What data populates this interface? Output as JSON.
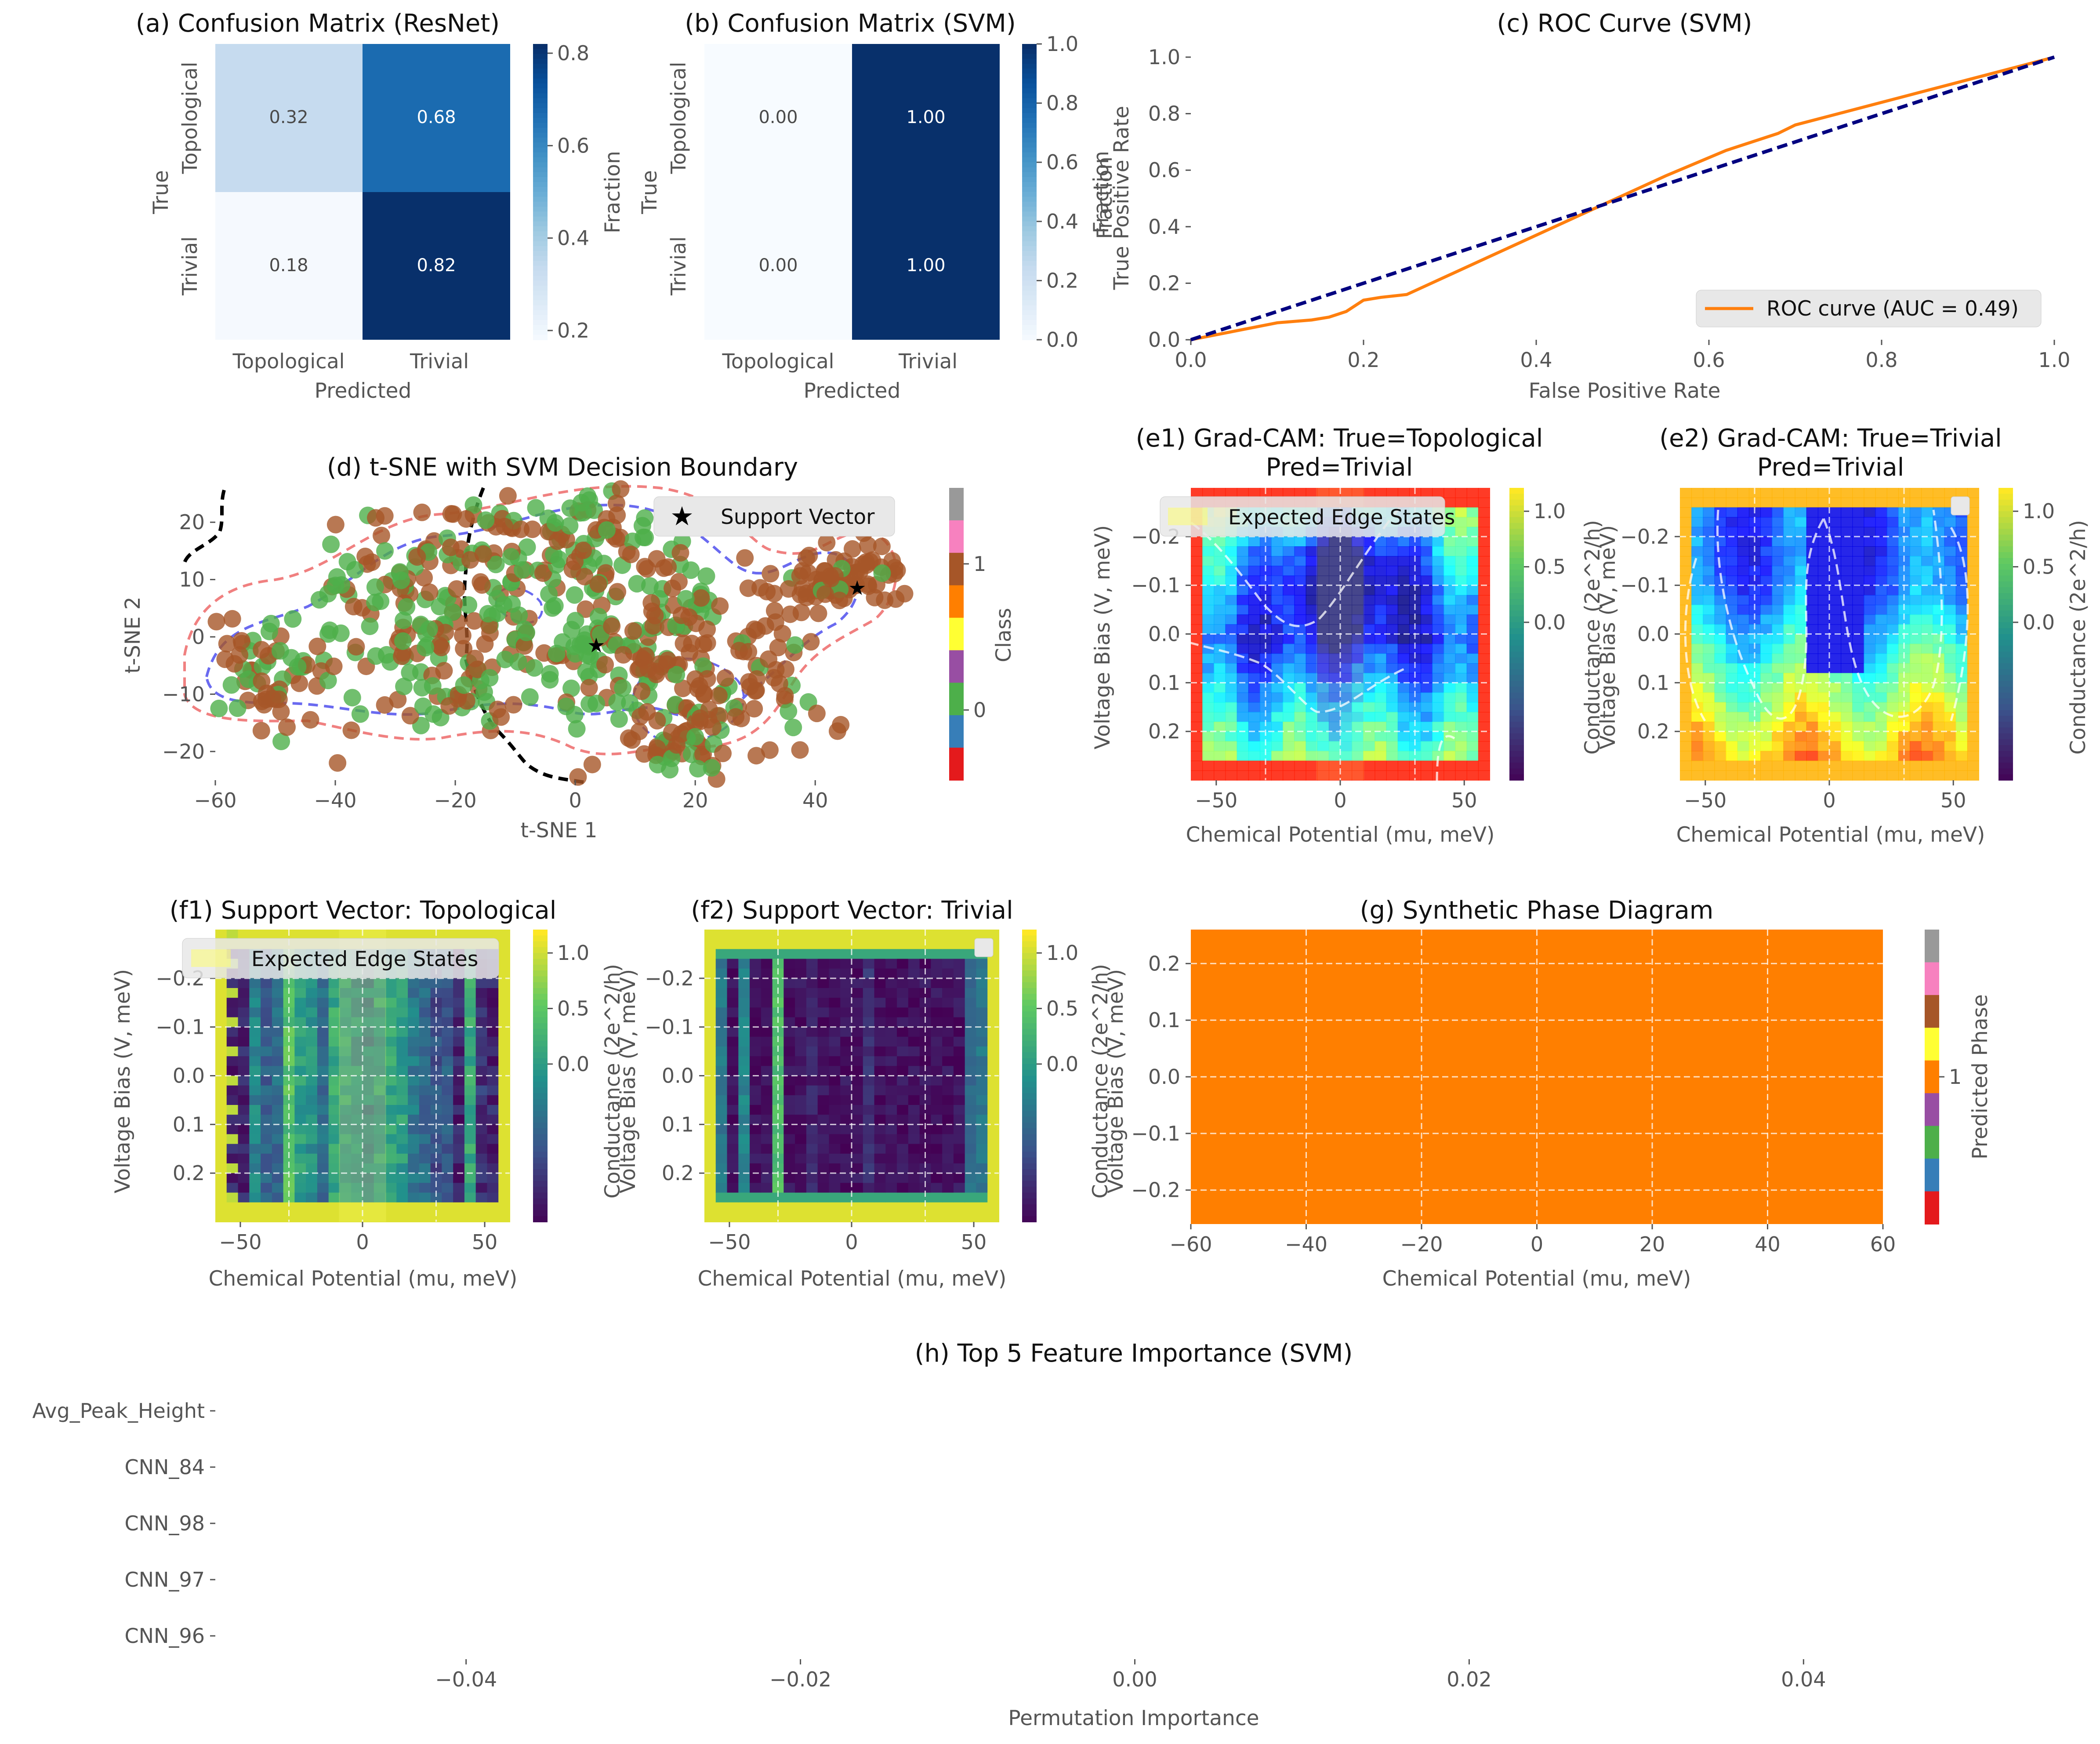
{
  "colors": {
    "blues": [
      "#f7fbff",
      "#deebf7",
      "#c6dbef",
      "#9ecae1",
      "#6baed6",
      "#4292c6",
      "#2171b5",
      "#08519c",
      "#08306b"
    ],
    "viridis": [
      "#440154",
      "#3b528b",
      "#21918c",
      "#5ec962",
      "#fde725"
    ],
    "set1": [
      "#e41a1c",
      "#377eb8",
      "#4daf4a",
      "#984ea3",
      "#ff7f00",
      "#ffff33",
      "#a65628",
      "#f781bf",
      "#999999"
    ],
    "roc": "#ff7f0e",
    "diag": "#000080",
    "class0": "#4daf4a",
    "class1": "#a65628",
    "phase": "#ff7f00"
  },
  "chart_data": [
    {
      "id": "a",
      "type": "heatmap",
      "title": "(a) Confusion Matrix (ResNet)",
      "rows": [
        "Topological",
        "Trivial"
      ],
      "cols": [
        "Topological",
        "Trivial"
      ],
      "values": [
        [
          0.32,
          0.68
        ],
        [
          0.18,
          0.82
        ]
      ],
      "value_labels": [
        [
          "0.32",
          "0.68"
        ],
        [
          "0.18",
          "0.82"
        ]
      ],
      "xlabel": "Predicted",
      "ylabel": "True",
      "colorbar": {
        "label": "Fraction",
        "range": [
          0.18,
          0.82
        ],
        "ticks": [
          "0.2",
          "0.4",
          "0.6",
          "0.8"
        ],
        "tick_values": [
          0.2,
          0.4,
          0.6,
          0.8
        ]
      }
    },
    {
      "id": "b",
      "type": "heatmap",
      "title": "(b) Confusion Matrix (SVM)",
      "rows": [
        "Topological",
        "Trivial"
      ],
      "cols": [
        "Topological",
        "Trivial"
      ],
      "values": [
        [
          0.0,
          1.0
        ],
        [
          0.0,
          1.0
        ]
      ],
      "value_labels": [
        [
          "0.00",
          "1.00"
        ],
        [
          "0.00",
          "1.00"
        ]
      ],
      "xlabel": "Predicted",
      "ylabel": "True",
      "colorbar": {
        "label": "Fraction",
        "range": [
          0,
          1
        ],
        "ticks": [
          "0.0",
          "0.2",
          "0.4",
          "0.6",
          "0.8",
          "1.0"
        ],
        "tick_values": [
          0,
          0.2,
          0.4,
          0.6,
          0.8,
          1.0
        ]
      }
    },
    {
      "id": "c",
      "type": "line",
      "title": "(c) ROC Curve (SVM)",
      "xlabel": "False Positive Rate",
      "ylabel": "True Positive Rate",
      "xlim": [
        0,
        1
      ],
      "ylim": [
        0,
        1
      ],
      "xticks": [
        "0.0",
        "0.2",
        "0.4",
        "0.6",
        "0.8",
        "1.0"
      ],
      "yticks": [
        "0.0",
        "0.2",
        "0.4",
        "0.6",
        "0.8",
        "1.0"
      ],
      "series": [
        {
          "name": "ROC curve (AUC = 0.49)",
          "x": [
            0,
            0.05,
            0.1,
            0.14,
            0.16,
            0.18,
            0.2,
            0.22,
            0.25,
            0.35,
            0.45,
            0.55,
            0.62,
            0.68,
            0.7,
            0.75,
            0.8,
            0.85,
            0.9,
            0.95,
            1.0
          ],
          "y": [
            0,
            0.03,
            0.06,
            0.07,
            0.08,
            0.1,
            0.14,
            0.15,
            0.16,
            0.3,
            0.44,
            0.58,
            0.67,
            0.73,
            0.76,
            0.8,
            0.84,
            0.88,
            0.92,
            0.96,
            1.0
          ]
        },
        {
          "name": "",
          "x": [
            0,
            1
          ],
          "y": [
            0,
            1
          ],
          "dashed": true
        }
      ],
      "legend": "lower-right"
    },
    {
      "id": "d",
      "type": "scatter",
      "title": "(d) t-SNE with SVM Decision Boundary",
      "xlabel": "t-SNE 1",
      "ylabel": "t-SNE 2",
      "xlim": [
        -60,
        55
      ],
      "ylim": [
        -25,
        26
      ],
      "xticks": [
        "−60",
        "−40",
        "−20",
        "0",
        "20",
        "40"
      ],
      "xtick_values": [
        -60,
        -40,
        -20,
        0,
        20,
        40
      ],
      "yticks": [
        "−20",
        "−10",
        "0",
        "10",
        "20"
      ],
      "ytick_values": [
        -20,
        -10,
        0,
        10,
        20
      ],
      "support_vectors": [
        [
          3.5,
          -1
        ],
        [
          47,
          9
        ]
      ],
      "legend_label": "Support Vector",
      "colorbar": {
        "label": "Class",
        "ticks": [
          "0",
          "1"
        ]
      }
    },
    {
      "id": "e1",
      "type": "heatmap",
      "title": "(e1) Grad-CAM: True=Topological",
      "subtitle": "Pred=Trivial",
      "xlabel": "Chemical Potential (mu, meV)",
      "ylabel": "Voltage Bias (V, meV)",
      "xticks": [
        "−50",
        "0",
        "50"
      ],
      "yticks": [
        "−0.2",
        "−0.1",
        "0.0",
        "0.1",
        "0.2"
      ],
      "legend_label": "Expected Edge States",
      "colorbar": {
        "label": "Conductance (2e^2/h)",
        "ticks": [
          "1.0",
          "0.5",
          "0.0"
        ]
      }
    },
    {
      "id": "e2",
      "type": "heatmap",
      "title": "(e2) Grad-CAM: True=Trivial",
      "subtitle": "Pred=Trivial",
      "xlabel": "Chemical Potential (mu, meV)",
      "ylabel": "Voltage Bias (V, meV)",
      "xticks": [
        "−50",
        "0",
        "50"
      ],
      "yticks": [
        "−0.2",
        "−0.1",
        "0.0",
        "0.1",
        "0.2"
      ],
      "colorbar": {
        "label": "Conductance (2e^2/h)",
        "ticks": [
          "1.0",
          "0.5",
          "0.0"
        ]
      }
    },
    {
      "id": "f1",
      "type": "heatmap",
      "title": "(f1) Support Vector: Topological",
      "xlabel": "Chemical Potential (mu, meV)",
      "ylabel": "Voltage Bias (V, meV)",
      "xticks": [
        "−50",
        "0",
        "50"
      ],
      "yticks": [
        "−0.2",
        "−0.1",
        "0.0",
        "0.1",
        "0.2"
      ],
      "legend_label": "Expected Edge States",
      "colorbar": {
        "label": "Conductance (2e^2/h)",
        "ticks": [
          "1.0",
          "0.5",
          "0.0"
        ]
      }
    },
    {
      "id": "f2",
      "type": "heatmap",
      "title": "(f2) Support Vector: Trivial",
      "xlabel": "Chemical Potential (mu, meV)",
      "ylabel": "Voltage Bias (V, meV)",
      "xticks": [
        "−50",
        "0",
        "50"
      ],
      "yticks": [
        "−0.2",
        "−0.1",
        "0.0",
        "0.1",
        "0.2"
      ],
      "colorbar": {
        "label": "Conductance (2e^2/h)",
        "ticks": [
          "1.0",
          "0.5",
          "0.0"
        ]
      }
    },
    {
      "id": "g",
      "type": "heatmap",
      "title": "(g) Synthetic Phase Diagram",
      "xlabel": "Chemical Potential (mu, meV)",
      "ylabel": "Voltage Bias (V, meV)",
      "xlim": [
        -60,
        60
      ],
      "xticks": [
        "−60",
        "−40",
        "−20",
        "0",
        "20",
        "40",
        "60"
      ],
      "yticks": [
        "0.2",
        "0.1",
        "0.0",
        "−0.1",
        "−0.2"
      ],
      "predicted_phase": 1,
      "colorbar": {
        "label": "Predicted Phase",
        "ticks": [
          "1"
        ]
      }
    },
    {
      "id": "h",
      "type": "bar",
      "title": "(h) Top 5 Feature Importance (SVM)",
      "xlabel": "Permutation Importance",
      "ylabel": "",
      "categories": [
        "Avg_Peak_Height",
        "CNN_84",
        "CNN_98",
        "CNN_97",
        "CNN_96"
      ],
      "values": [
        0,
        0,
        0,
        0,
        0
      ],
      "xlim": [
        -0.055,
        0.055
      ],
      "xticks": [
        "−0.04",
        "−0.02",
        "0.00",
        "0.02",
        "0.04"
      ]
    }
  ]
}
